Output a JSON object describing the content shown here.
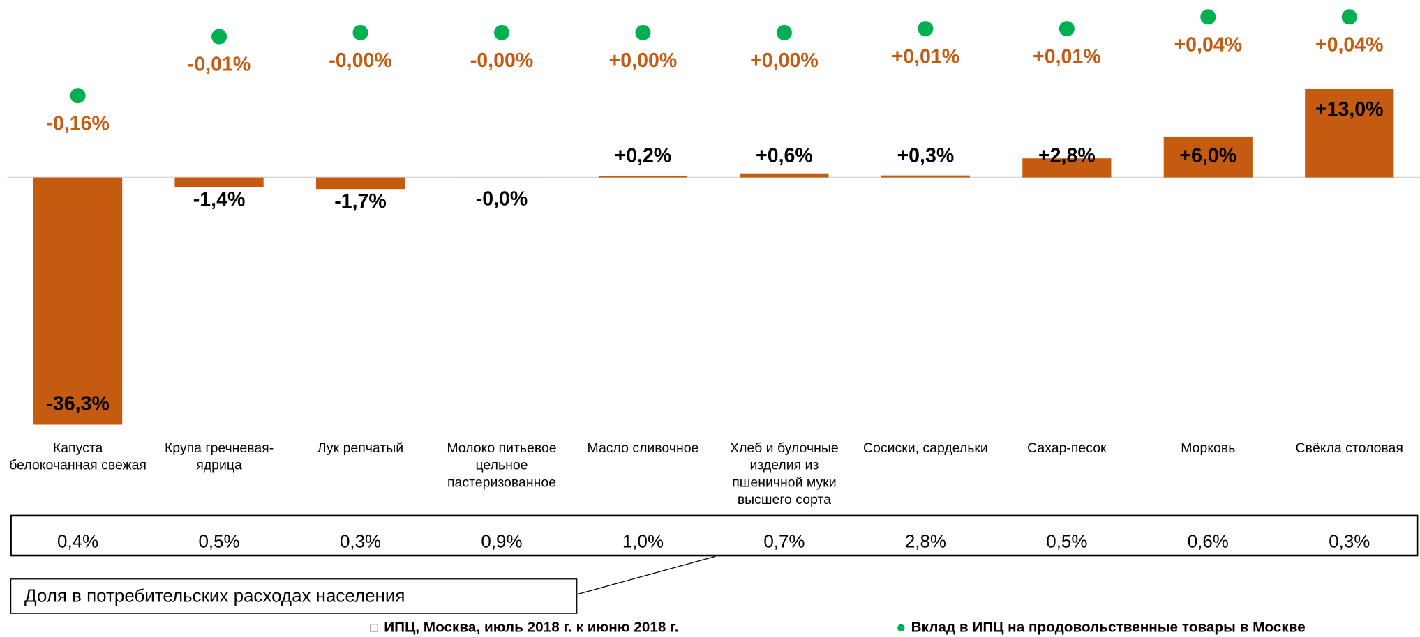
{
  "chart_data": {
    "type": "bar",
    "categories": [
      "Капуста белокочанная свежая",
      "Крупа гречневая-ядрица",
      "Лук репчатый",
      "Молоко питьевое цельное пастеризованное",
      "Масло сливочное",
      "Хлеб и булочные изделия из пшеничной муки высшего сорта",
      "Сосиски, сардельки",
      "Сахар-песок",
      "Морковь",
      "Свёкла столовая"
    ],
    "series": [
      {
        "name": "ИПЦ, Москва, июль 2018 г. к июню 2018 г.",
        "color": "#C55A11",
        "values": [
          -36.3,
          -1.4,
          -1.7,
          -0.0,
          0.2,
          0.6,
          0.3,
          2.8,
          6.0,
          13.0
        ],
        "value_labels": [
          "-36,3%",
          "-1,4%",
          "-1,7%",
          "-0,0%",
          "+0,2%",
          "+0,6%",
          "+0,3%",
          "+2,8%",
          "+6,0%",
          "+13,0%"
        ]
      },
      {
        "name": "Вклад в ИПЦ на продовольственные товары в Москве",
        "color": "#00B050",
        "axis": "y2",
        "label_color": "#C55A11",
        "values": [
          -0.16,
          -0.01,
          -0.0,
          -0.0,
          0.0,
          0.0,
          0.01,
          0.01,
          0.04,
          0.04
        ],
        "value_labels": [
          "-0,16%",
          "-0,01%",
          "-0,00%",
          "-0,00%",
          "+0,00%",
          "+0,00%",
          "+0,01%",
          "+0,01%",
          "+0,04%",
          "+0,04%"
        ]
      }
    ],
    "ylim": [
      -36.5,
      25
    ],
    "y2lim": [
      -1.0,
      0.065
    ]
  },
  "share_table": {
    "label": "Доля в потребительских расходах населения",
    "values": [
      "0,4%",
      "0,5%",
      "0,3%",
      "0,9%",
      "1,0%",
      "0,7%",
      "2,8%",
      "0,5%",
      "0,6%",
      "0,3%"
    ]
  }
}
